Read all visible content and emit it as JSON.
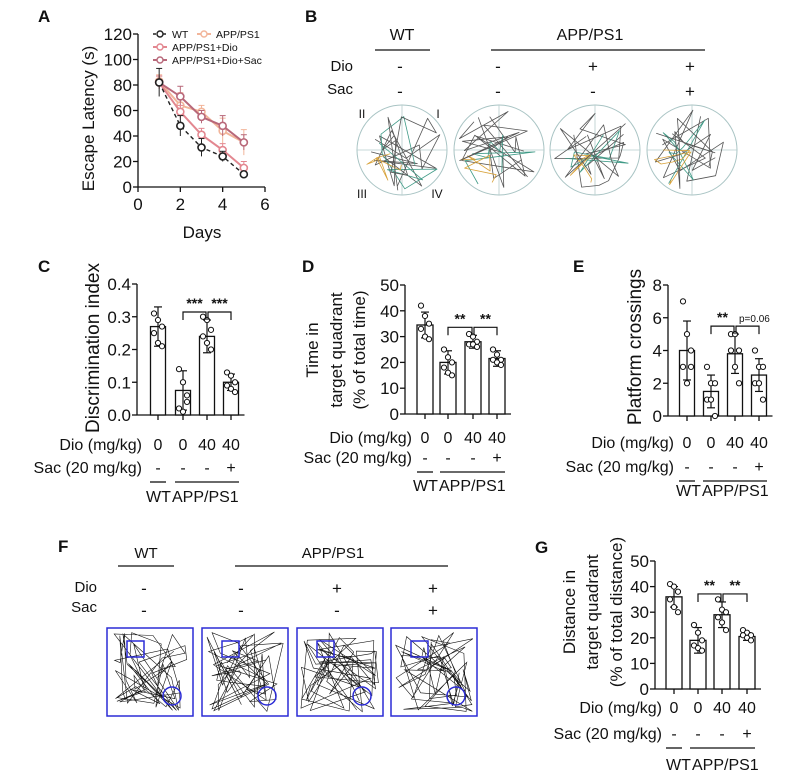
{
  "panels": {
    "A": "A",
    "B": "B",
    "C": "C",
    "D": "D",
    "E": "E",
    "F": "F",
    "G": "G"
  },
  "colors": {
    "wt": "#222222",
    "app": "#f2b59a",
    "dio": "#e38790",
    "sac": "#b8687a",
    "arena_border": "#2b2bd6",
    "target_platform": "#2b2bd6",
    "trace_green": "#3f9a86",
    "trace_orange": "#d8a23a",
    "trace_gray": "#555555"
  },
  "chart_data": [
    {
      "id": "A",
      "type": "line",
      "xlabel": "Days",
      "ylabel": "Escape Latency (s)",
      "xlim": [
        0,
        6
      ],
      "ylim": [
        0,
        120
      ],
      "xticks": [
        "0",
        "2",
        "4",
        "6"
      ],
      "yticks": [
        "0",
        "20",
        "40",
        "60",
        "80",
        "100",
        "120"
      ],
      "x": [
        1,
        2,
        3,
        4,
        5
      ],
      "legend_placement": "top-right",
      "series": [
        {
          "name": "WT",
          "values": [
            82,
            48,
            31,
            24,
            10
          ],
          "err": [
            11,
            8,
            7,
            4,
            1
          ],
          "style": "dashed"
        },
        {
          "name": "APP/PS1",
          "values": [
            83,
            64,
            59,
            44,
            35
          ],
          "err": [
            5,
            10,
            5,
            10,
            10
          ],
          "style": "solid"
        },
        {
          "name": "APP/PS1+Dio",
          "values": [
            82,
            59,
            41,
            29,
            15
          ],
          "err": [
            5,
            5,
            5,
            5,
            5
          ],
          "style": "solid"
        },
        {
          "name": "APP/PS1+Dio+Sac",
          "values": [
            82,
            71,
            55,
            48,
            35
          ],
          "err": [
            5,
            8,
            5,
            8,
            6
          ],
          "style": "solid"
        }
      ]
    },
    {
      "id": "C",
      "type": "bar",
      "ylabel": "Discrimination index",
      "ylim": [
        0,
        0.4
      ],
      "yticks": [
        "0.0",
        "0.1",
        "0.2",
        "0.3",
        "0.4"
      ],
      "values": [
        0.27,
        0.075,
        0.24,
        0.1
      ],
      "err": [
        0.06,
        0.06,
        0.05,
        0.025
      ],
      "points": [
        [
          0.31,
          0.29,
          0.27,
          0.25,
          0.22,
          0.21
        ],
        [
          0.14,
          0.1,
          0.06,
          0.02,
          0.01,
          0.04
        ],
        [
          0.3,
          0.29,
          0.26,
          0.24,
          0.22,
          0.2
        ],
        [
          0.13,
          0.12,
          0.1,
          0.09,
          0.08,
          0.07
        ]
      ],
      "significance": [
        "***",
        "***"
      ]
    },
    {
      "id": "D",
      "type": "bar",
      "ylabel": [
        "Time in",
        "target quadrant",
        "(% of total time)"
      ],
      "ylim": [
        0,
        50
      ],
      "yticks": [
        "0",
        "10",
        "20",
        "30",
        "40",
        "50"
      ],
      "values": [
        34.5,
        20,
        28,
        21.5
      ],
      "err": [
        5,
        4.5,
        2.5,
        3
      ],
      "points": [
        [
          42,
          38,
          35,
          33,
          30,
          29
        ],
        [
          25,
          22,
          20,
          18,
          16,
          15
        ],
        [
          31,
          30,
          28,
          27,
          27,
          26
        ],
        [
          25,
          23,
          21,
          21,
          20,
          19
        ]
      ],
      "significance": [
        "**",
        "**"
      ]
    },
    {
      "id": "E",
      "type": "bar",
      "ylabel": "Platform crossings",
      "ylim": [
        0,
        8
      ],
      "yticks": [
        "0",
        "2",
        "4",
        "6",
        "8"
      ],
      "values": [
        4.0,
        1.5,
        3.8,
        2.5
      ],
      "err": [
        1.8,
        1.0,
        1.2,
        1.0
      ],
      "points": [
        [
          7,
          5,
          4,
          3,
          2,
          3
        ],
        [
          3,
          2,
          2,
          1,
          1,
          0
        ],
        [
          5,
          5,
          4,
          4,
          3,
          2
        ],
        [
          4,
          3,
          3,
          2,
          2,
          1
        ]
      ],
      "significance": [
        "**",
        "p=0.06"
      ]
    },
    {
      "id": "G",
      "type": "bar",
      "ylabel": [
        "Distance in",
        "target quadrant",
        "(% of total distance)"
      ],
      "ylim": [
        0,
        50
      ],
      "yticks": [
        "0",
        "10",
        "20",
        "30",
        "40",
        "50"
      ],
      "values": [
        36,
        19,
        29,
        20.5
      ],
      "err": [
        4,
        5,
        5,
        1.5
      ],
      "points": [
        [
          41,
          40,
          38,
          35,
          32,
          30
        ],
        [
          25,
          22,
          19,
          17,
          16,
          15
        ],
        [
          35,
          31,
          30,
          28,
          26,
          23
        ],
        [
          23,
          22,
          21,
          21,
          20,
          19
        ]
      ],
      "significance": [
        "**",
        "**"
      ]
    }
  ],
  "bar_labels": {
    "dio_label": "Dio (mg/kg)",
    "dio_values": [
      "0",
      "0",
      "40",
      "40"
    ],
    "sac_label": "Sac (20 mg/kg)",
    "sac_values": [
      "-",
      "-",
      "-",
      "+"
    ],
    "wt": "WT",
    "app": "APP/PS1"
  },
  "panel_B": {
    "wt": "WT",
    "app": "APP/PS1",
    "dio_label": "Dio",
    "sac_label": "Sac",
    "dio_values": [
      "-",
      "-",
      "+",
      "+"
    ],
    "sac_values": [
      "-",
      "-",
      "-",
      "+"
    ],
    "quadrants": [
      "I",
      "II",
      "III",
      "IV"
    ]
  },
  "panel_F": {
    "wt": "WT",
    "app": "APP/PS1",
    "dio_label": "Dio",
    "sac_label": "Sac",
    "dio_values": [
      "-",
      "-",
      "+",
      "+"
    ],
    "sac_values": [
      "-",
      "-",
      "-",
      "+"
    ]
  }
}
